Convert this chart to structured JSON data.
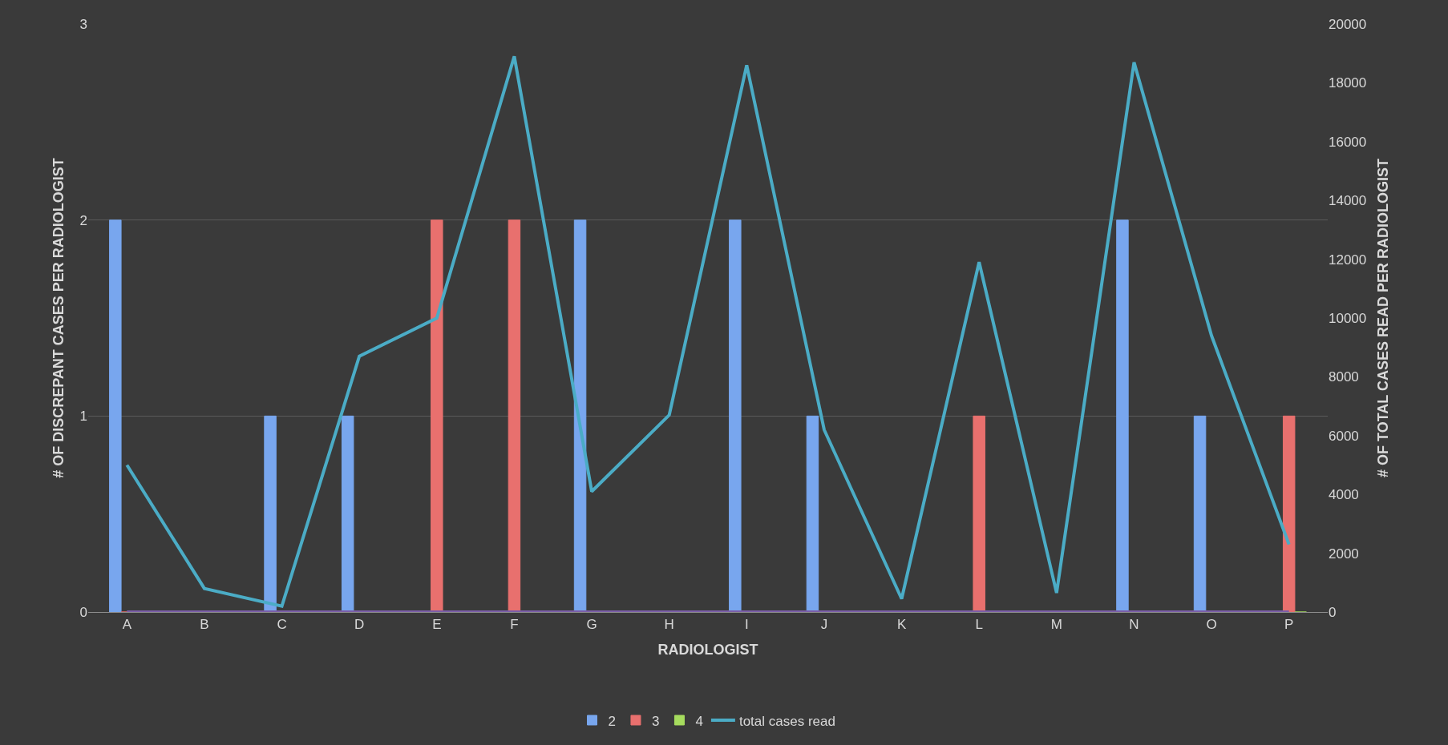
{
  "chart_data": {
    "type": "bar",
    "xlabel": "RADIOLOGIST",
    "ylabel": "# OF DISCREPANT CASES PER RADIOLOGIST",
    "y2label": "# OF TOTAL CASES READ PER RADIOLOGIST",
    "categories": [
      "A",
      "B",
      "C",
      "D",
      "E",
      "F",
      "G",
      "H",
      "I",
      "J",
      "K",
      "L",
      "M",
      "N",
      "O",
      "P"
    ],
    "series": [
      {
        "name": "2",
        "color": "#78a6ee",
        "values": [
          2,
          0,
          1,
          1,
          0,
          0,
          2,
          0,
          2,
          1,
          0,
          0,
          0,
          2,
          1,
          0
        ]
      },
      {
        "name": "3",
        "color": "#e8706e",
        "values": [
          0,
          0,
          0,
          0,
          2,
          2,
          0,
          0,
          0,
          0,
          0,
          1,
          0,
          0,
          0,
          1
        ]
      },
      {
        "name": "4",
        "color": "#a6dc5e",
        "values": [
          0,
          0,
          0,
          0,
          0,
          0,
          0,
          0,
          0,
          0,
          0,
          0,
          0,
          0,
          0,
          0
        ]
      },
      {
        "type": "line",
        "color": "#7b5fa8",
        "values": [
          0,
          0,
          0,
          0,
          0,
          0,
          0,
          0,
          0,
          0,
          0,
          0,
          0,
          0,
          0,
          0
        ]
      },
      {
        "name": "total cases read",
        "type": "line",
        "axis": "y2",
        "color": "#4bacc6",
        "values": [
          5000,
          800,
          200,
          8700,
          10000,
          18900,
          4100,
          6700,
          18600,
          6200,
          450,
          11900,
          650,
          18700,
          9400,
          2300
        ]
      }
    ],
    "ylim": [
      0,
      3
    ],
    "yticks": [
      0,
      1,
      2,
      3
    ],
    "y2lim": [
      0,
      20000
    ],
    "y2ticks": [
      0,
      2000,
      4000,
      6000,
      8000,
      10000,
      12000,
      14000,
      16000,
      18000,
      20000
    ],
    "grid": "y",
    "legend": "bottom",
    "marker": "none",
    "line_style": "solid"
  }
}
